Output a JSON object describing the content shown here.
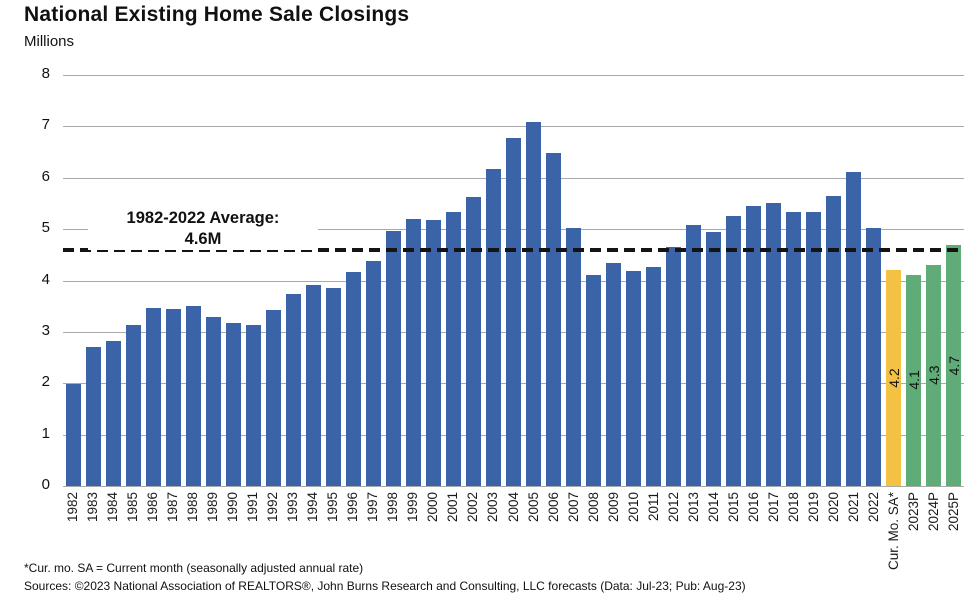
{
  "header": {
    "title": "National Existing Home Sale Closings",
    "units_label": "Millions"
  },
  "chart_data": {
    "type": "bar",
    "title": "National Existing Home Sale Closings",
    "ylabel": "Millions",
    "xlabel": "",
    "ylim": [
      0,
      8
    ],
    "ytick_step": 1,
    "grid": true,
    "legend_position": "none",
    "average_line": {
      "value": 4.6,
      "label_lines": [
        "1982-2022 Average:",
        "4.6M"
      ]
    },
    "colors": {
      "historical": "#3B63A8",
      "current": "#F4C242",
      "forecast": "#5FAC78",
      "grid": "#A9A9A9",
      "average_line": "#141414"
    },
    "bars": [
      {
        "label": "1982",
        "value": 1.99,
        "group": "historical"
      },
      {
        "label": "1983",
        "value": 2.7,
        "group": "historical"
      },
      {
        "label": "1984",
        "value": 2.83,
        "group": "historical"
      },
      {
        "label": "1985",
        "value": 3.13,
        "group": "historical"
      },
      {
        "label": "1986",
        "value": 3.47,
        "group": "historical"
      },
      {
        "label": "1987",
        "value": 3.44,
        "group": "historical"
      },
      {
        "label": "1988",
        "value": 3.51,
        "group": "historical"
      },
      {
        "label": "1989",
        "value": 3.29,
        "group": "historical"
      },
      {
        "label": "1990",
        "value": 3.18,
        "group": "historical"
      },
      {
        "label": "1991",
        "value": 3.14,
        "group": "historical"
      },
      {
        "label": "1992",
        "value": 3.43,
        "group": "historical"
      },
      {
        "label": "1993",
        "value": 3.73,
        "group": "historical"
      },
      {
        "label": "1994",
        "value": 3.91,
        "group": "historical"
      },
      {
        "label": "1995",
        "value": 3.85,
        "group": "historical"
      },
      {
        "label": "1996",
        "value": 4.17,
        "group": "historical"
      },
      {
        "label": "1997",
        "value": 4.37,
        "group": "historical"
      },
      {
        "label": "1998",
        "value": 4.97,
        "group": "historical"
      },
      {
        "label": "1999",
        "value": 5.19,
        "group": "historical"
      },
      {
        "label": "2000",
        "value": 5.17,
        "group": "historical"
      },
      {
        "label": "2001",
        "value": 5.33,
        "group": "historical"
      },
      {
        "label": "2002",
        "value": 5.63,
        "group": "historical"
      },
      {
        "label": "2003",
        "value": 6.18,
        "group": "historical"
      },
      {
        "label": "2004",
        "value": 6.78,
        "group": "historical"
      },
      {
        "label": "2005",
        "value": 7.08,
        "group": "historical"
      },
      {
        "label": "2006",
        "value": 6.48,
        "group": "historical"
      },
      {
        "label": "2007",
        "value": 5.03,
        "group": "historical"
      },
      {
        "label": "2008",
        "value": 4.11,
        "group": "historical"
      },
      {
        "label": "2009",
        "value": 4.34,
        "group": "historical"
      },
      {
        "label": "2010",
        "value": 4.19,
        "group": "historical"
      },
      {
        "label": "2011",
        "value": 4.26,
        "group": "historical"
      },
      {
        "label": "2012",
        "value": 4.66,
        "group": "historical"
      },
      {
        "label": "2013",
        "value": 5.09,
        "group": "historical"
      },
      {
        "label": "2014",
        "value": 4.94,
        "group": "historical"
      },
      {
        "label": "2015",
        "value": 5.25,
        "group": "historical"
      },
      {
        "label": "2016",
        "value": 5.45,
        "group": "historical"
      },
      {
        "label": "2017",
        "value": 5.51,
        "group": "historical"
      },
      {
        "label": "2018",
        "value": 5.34,
        "group": "historical"
      },
      {
        "label": "2019",
        "value": 5.34,
        "group": "historical"
      },
      {
        "label": "2020",
        "value": 5.64,
        "group": "historical"
      },
      {
        "label": "2021",
        "value": 6.12,
        "group": "historical"
      },
      {
        "label": "2022",
        "value": 5.03,
        "group": "historical"
      },
      {
        "label": "Cur. Mo. SA*",
        "value": 4.2,
        "group": "current",
        "value_label": "4.2"
      },
      {
        "label": "2023P",
        "value": 4.1,
        "group": "forecast",
        "value_label": "4.1"
      },
      {
        "label": "2024P",
        "value": 4.3,
        "group": "forecast",
        "value_label": "4.3"
      },
      {
        "label": "2025P",
        "value": 4.7,
        "group": "forecast",
        "value_label": "4.7"
      }
    ]
  },
  "footnotes": {
    "line1": "*Cur. mo. SA = Current month (seasonally adjusted annual rate)",
    "line2": "Sources: ©2023 National Association of REALTORS®, John Burns Research and Consulting, LLC forecasts (Data: Jul-23; Pub: Aug-23)"
  }
}
